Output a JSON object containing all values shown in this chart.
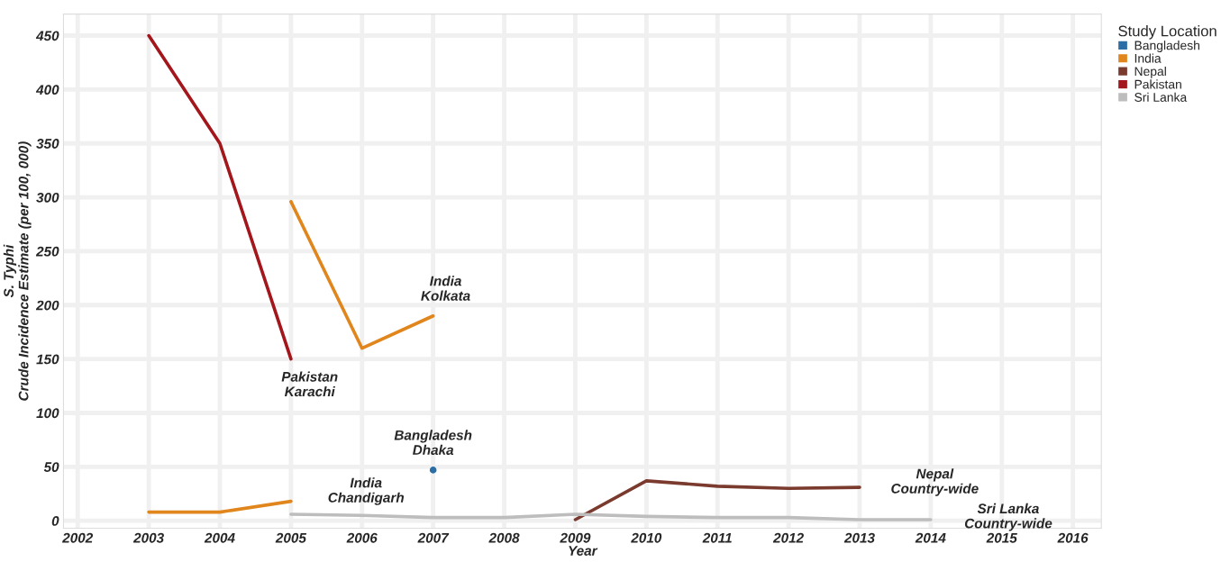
{
  "chart_data": {
    "type": "line",
    "xlabel": "Year",
    "ylabel": "S. Typhi\nCrude Incidence Estimate (per 100, 000)",
    "legend_title": "Study Location",
    "series": [
      {
        "name": "Bangladesh",
        "type": "scatter",
        "color": "#2b6ea6",
        "x": [
          2007
        ],
        "values": [
          47
        ],
        "marker": "circle"
      },
      {
        "name": "India",
        "color": "#e0861c",
        "x": [
          2003,
          2004,
          2005
        ],
        "values": [
          8,
          8,
          18
        ]
      },
      {
        "color": "#e0861c",
        "x": [
          2005,
          2006,
          2007
        ],
        "values": [
          296,
          160,
          190
        ]
      },
      {
        "name": "Nepal",
        "color": "#7a3a2e",
        "x": [
          2009,
          2010,
          2011,
          2012,
          2013
        ],
        "values": [
          1,
          37,
          32,
          30,
          31
        ]
      },
      {
        "name": "Pakistan",
        "color": "#a3161b",
        "x": [
          2003,
          2004,
          2005
        ],
        "values": [
          450,
          350,
          150
        ]
      },
      {
        "name": "Sri Lanka",
        "color": "#bdbdbd",
        "x": [
          2005,
          2006,
          2007,
          2008,
          2009,
          2010,
          2011,
          2012,
          2013,
          2014
        ],
        "values": [
          6,
          5,
          3,
          3,
          6,
          4,
          3,
          3,
          1,
          1
        ]
      }
    ],
    "annotations": [
      {
        "text": "Pakistan\nKarachi",
        "x": 2005,
        "y": 150
      },
      {
        "text": "India\nKolkata",
        "x": 2007,
        "y": 190
      },
      {
        "text": "India\nChandigarh",
        "x": 2005,
        "y": 18
      },
      {
        "text": "Bangladesh\nDhaka",
        "x": 2007,
        "y": 47
      },
      {
        "text": "Nepal\nCountry-wide",
        "x": 2013,
        "y": 31
      },
      {
        "text": "Sri Lanka\nCountry-wide",
        "x": 2014,
        "y": 1
      }
    ],
    "xlim": [
      2001.8,
      2016.4
    ],
    "xticks": [
      2002,
      2003,
      2004,
      2005,
      2006,
      2007,
      2008,
      2009,
      2010,
      2011,
      2012,
      2013,
      2014,
      2015,
      2016
    ],
    "ylim": [
      -7,
      470
    ],
    "yticks": [
      0,
      50,
      100,
      150,
      200,
      250,
      300,
      350,
      400,
      450
    ],
    "grid": true,
    "legend": "top right",
    "marker": "none",
    "line_style": "solid"
  }
}
